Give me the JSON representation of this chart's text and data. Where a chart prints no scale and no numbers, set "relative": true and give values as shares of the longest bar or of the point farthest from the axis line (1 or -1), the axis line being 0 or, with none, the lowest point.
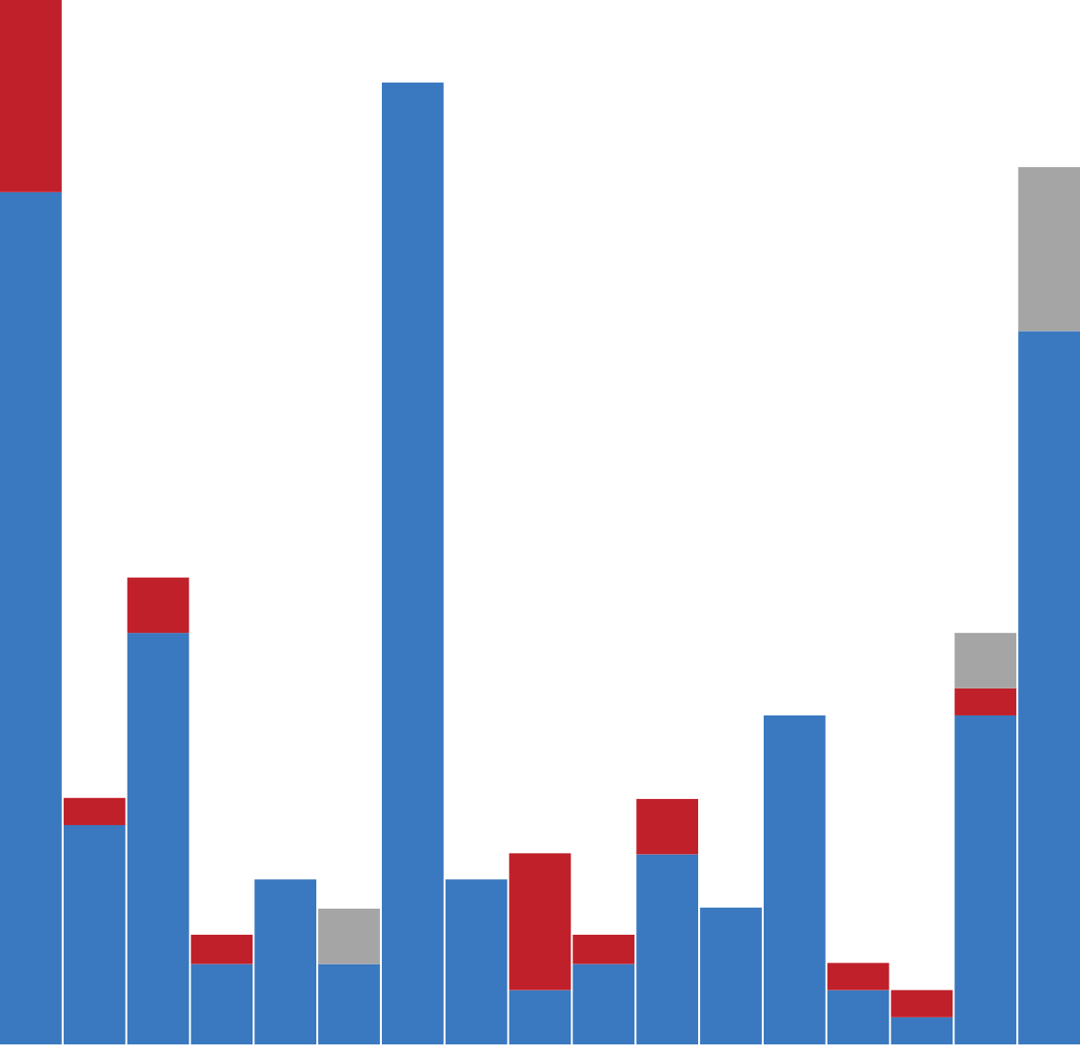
{
  "chart_data": {
    "type": "bar",
    "stacked": true,
    "relative": true,
    "categories": [
      null,
      null,
      null,
      null,
      null,
      null,
      null,
      null,
      null,
      null,
      null,
      null,
      null,
      null,
      null,
      null,
      null
    ],
    "series": [
      {
        "color": "#3a78bf",
        "values": [
          0.816,
          0.21,
          0.394,
          0.077,
          0.158,
          0.077,
          0.921,
          0.158,
          0.052,
          0.077,
          0.182,
          0.131,
          0.315,
          0.052,
          0.026,
          0.315,
          0.683
        ]
      },
      {
        "color": "#c0202a",
        "values": [
          0.184,
          0.026,
          0.053,
          0.028,
          0,
          0,
          0,
          0,
          0.131,
          0.028,
          0.053,
          0,
          0,
          0.026,
          0.026,
          0.026,
          0
        ]
      },
      {
        "color": "#a6a5a5",
        "values": [
          0,
          0,
          0,
          0,
          0,
          0.053,
          0,
          0,
          0,
          0,
          0,
          0,
          0,
          0,
          0,
          0.053,
          0.157
        ]
      }
    ]
  }
}
